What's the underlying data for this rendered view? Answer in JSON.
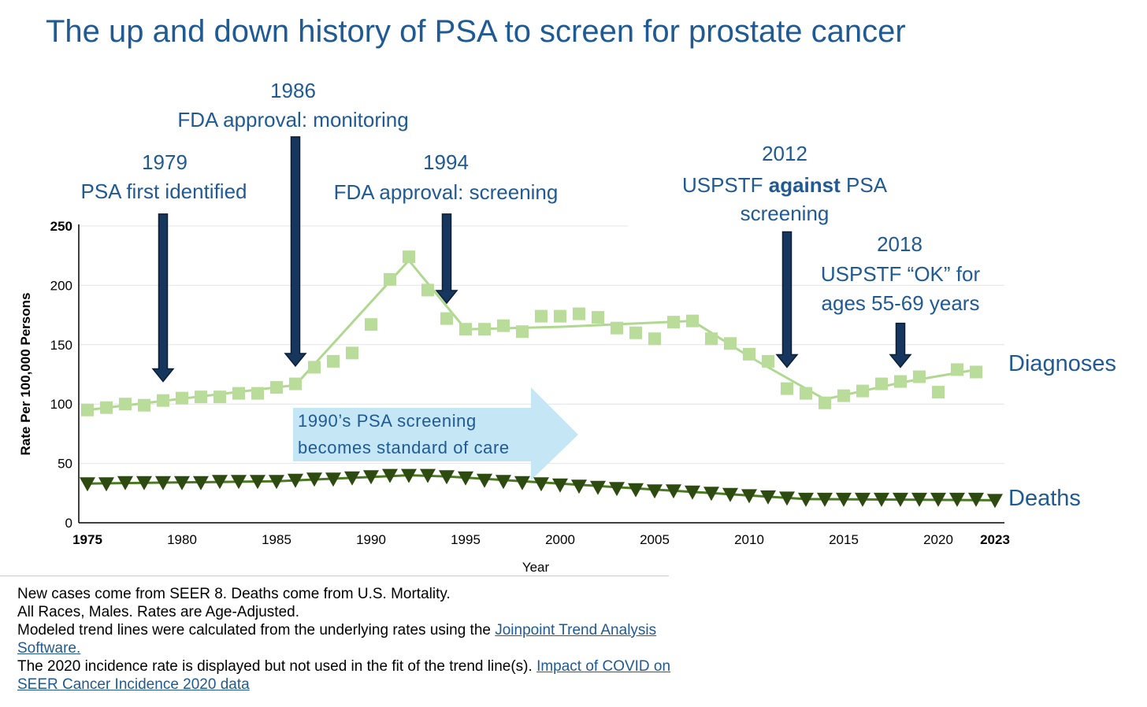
{
  "title": "The up and down history of PSA to screen for prostate cancer",
  "annotations": {
    "a1979": {
      "year": "1979",
      "text": "PSA first identified",
      "arrow_year": 1979,
      "arrow_from_value": 260,
      "arrow_to_value": 119
    },
    "a1986": {
      "year": "1986",
      "text": "FDA approval: monitoring",
      "arrow_year": 1986,
      "arrow_from_value": 325,
      "arrow_to_value": 132
    },
    "a1994": {
      "year": "1994",
      "text": "FDA approval: screening",
      "arrow_year": 1994,
      "arrow_from_value": 260,
      "arrow_to_value": 185
    },
    "a2012": {
      "year": "2012",
      "text_pre": "USPSTF ",
      "text_bold": "against",
      "text_post": " PSA",
      "text_line2": "screening",
      "arrow_year": 2012,
      "arrow_from_value": 245,
      "arrow_to_value": 131
    },
    "a2018": {
      "year": "2018",
      "text_line1": "USPSTF  “OK” for",
      "text_line2": "ages 55-69 years",
      "arrow_year": 2018,
      "arrow_from_value": 168,
      "arrow_to_value": 131
    }
  },
  "era_box": {
    "line1": "1990’s PSA screening",
    "line2": "becomes standard of care",
    "color": "#c5e6f5"
  },
  "series_labels": {
    "diagnoses": "Diagnoses",
    "deaths": "Deaths"
  },
  "colors": {
    "diagnoses_marker": "#b9dc9a",
    "diagnoses_line": "#b0d890",
    "deaths_marker": "#2d4a10",
    "deaths_line": "#4a7a20",
    "title": "#1f5a94",
    "grid": "#e4e4e4"
  },
  "chart_data": {
    "type": "line",
    "ylabel": "Rate Per 100,000 Persons",
    "xlabel": "Year",
    "ylim": [
      0,
      250
    ],
    "xlim": [
      1975,
      2023
    ],
    "yticks": [
      0,
      50,
      100,
      150,
      200,
      250
    ],
    "xticks": [
      "1975",
      "1980",
      "1985",
      "1990",
      "1995",
      "2000",
      "2005",
      "2010",
      "2015",
      "2020",
      "2023"
    ],
    "series": [
      {
        "name": "Diagnoses",
        "marker": "square",
        "x": [
          1975,
          1976,
          1977,
          1978,
          1979,
          1980,
          1981,
          1982,
          1983,
          1984,
          1985,
          1986,
          1987,
          1988,
          1989,
          1990,
          1991,
          1992,
          1993,
          1994,
          1995,
          1996,
          1997,
          1998,
          1999,
          2000,
          2001,
          2002,
          2003,
          2004,
          2005,
          2006,
          2007,
          2008,
          2009,
          2010,
          2011,
          2012,
          2013,
          2014,
          2015,
          2016,
          2017,
          2018,
          2019,
          2020,
          2021,
          2022
        ],
        "values": [
          95,
          97,
          100,
          99,
          103,
          105,
          106,
          106,
          109,
          109,
          114,
          117,
          131,
          136,
          143,
          167,
          205,
          224,
          196,
          172,
          163,
          163,
          166,
          161,
          174,
          174,
          176,
          173,
          164,
          160,
          155,
          169,
          170,
          155,
          151,
          142,
          136,
          113,
          109,
          101,
          107,
          111,
          117,
          119,
          123,
          110,
          129,
          127
        ],
        "trend_x": [
          1975,
          1986,
          1992,
          1995,
          2000,
          2007,
          2010,
          2014,
          2018,
          2022
        ],
        "trend": [
          95,
          116,
          221,
          163,
          165,
          170,
          140,
          104,
          118,
          129
        ]
      },
      {
        "name": "Deaths",
        "marker": "triangle-down",
        "x": [
          1975,
          1976,
          1977,
          1978,
          1979,
          1980,
          1981,
          1982,
          1983,
          1984,
          1985,
          1986,
          1987,
          1988,
          1989,
          1990,
          1991,
          1992,
          1993,
          1994,
          1995,
          1996,
          1997,
          1998,
          1999,
          2000,
          2001,
          2002,
          2003,
          2004,
          2005,
          2006,
          2007,
          2008,
          2009,
          2010,
          2011,
          2012,
          2013,
          2014,
          2015,
          2016,
          2017,
          2018,
          2019,
          2020,
          2021,
          2022,
          2023
        ],
        "values": [
          33,
          33,
          34,
          34,
          34,
          34,
          34,
          35,
          35,
          35,
          35,
          36,
          37,
          37,
          38,
          39,
          40,
          40,
          40,
          39,
          38,
          36,
          35,
          34,
          33,
          32,
          31,
          30,
          29,
          28,
          27,
          27,
          26,
          25,
          24,
          23,
          22,
          21,
          20,
          20,
          20,
          20,
          20,
          20,
          20,
          20,
          20,
          20,
          19
        ],
        "trend_x": [
          1975,
          1985,
          1992,
          1994,
          2013,
          2023
        ],
        "trend": [
          33,
          35,
          40,
          39,
          20,
          19
        ]
      }
    ]
  },
  "footer": {
    "line1": "New cases come from SEER 8. Deaths come from U.S. Mortality.",
    "line2": "All Races, Males. Rates are Age-Adjusted.",
    "line3_text": "Modeled trend lines were calculated from the underlying rates using the ",
    "line3_link": "Joinpoint Trend Analysis Software.",
    "line4_text": "The 2020 incidence rate is displayed but not used in the fit of the trend line(s). ",
    "line4_link": "Impact of COVID on SEER Cancer Incidence 2020 data"
  }
}
